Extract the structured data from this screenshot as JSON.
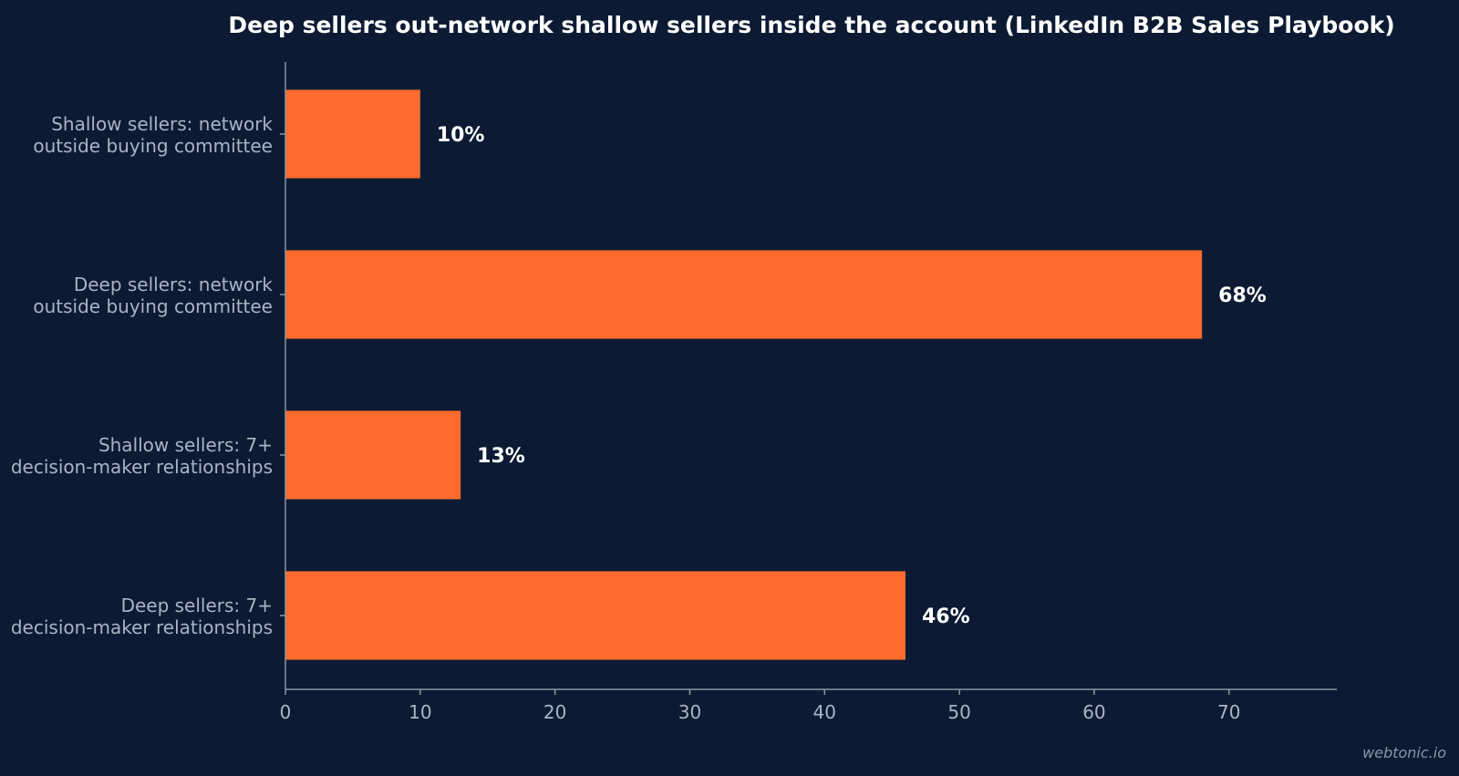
{
  "chart_data": {
    "type": "bar",
    "orientation": "horizontal",
    "title": "Deep sellers out-network shallow sellers inside the account (LinkedIn B2B Sales Playbook)",
    "categories": [
      [
        "Shallow sellers: network",
        "outside buying committee"
      ],
      [
        "Deep sellers: network",
        "outside buying committee"
      ],
      [
        "Shallow sellers: 7+",
        "decision-maker relationships"
      ],
      [
        "Deep sellers: 7+",
        "decision-maker relationships"
      ]
    ],
    "values": [
      10,
      68,
      13,
      46
    ],
    "value_labels": [
      "10%",
      "68%",
      "13%",
      "46%"
    ],
    "xlim": [
      0,
      78
    ],
    "x_ticks": [
      0,
      10,
      20,
      30,
      40,
      50,
      60,
      70
    ],
    "xlabel": "",
    "ylabel": "",
    "grid": false,
    "bar_color": "#ff6b2c"
  },
  "watermark": "webtonic.io",
  "colors": {
    "background": "#0c1b33",
    "bar": "#ff6b2c",
    "axis": "#8a96a8",
    "label": "#a9b4c6",
    "value": "#ffffff"
  }
}
